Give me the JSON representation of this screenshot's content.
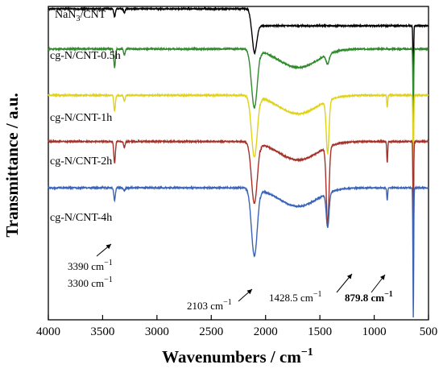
{
  "chart_data": {
    "type": "line",
    "xlabel": "Wavenumbers / cm",
    "xlabel_sup": "−1",
    "ylabel": "Transmittance / a.u.",
    "xlim": [
      4000,
      500
    ],
    "x_reversed": true,
    "xticks": [
      4000,
      3500,
      3000,
      2500,
      2000,
      1500,
      1000,
      500
    ],
    "xtick_labels": [
      "4000",
      "3500",
      "3000",
      "2500",
      "2000",
      "1500",
      "1000",
      "500"
    ],
    "yticks_shown": false,
    "grid": false,
    "series": [
      {
        "name": "NaN3/CNT",
        "label_main": "NaN",
        "label_sub": "3",
        "label_tail": "/CNT",
        "color": "#000000",
        "baseline": 1.0,
        "peaks": [
          {
            "x": 3390,
            "depth": 0.025,
            "width": 10
          },
          {
            "x": 3300,
            "depth": 0.012,
            "width": 10
          },
          {
            "x": 2103,
            "depth": 0.09,
            "width": 30
          },
          {
            "x": 640,
            "depth": 0.19,
            "width": 5
          }
        ],
        "drifts": [
          {
            "from": 2200,
            "to": 2080,
            "delta": -0.06
          },
          {
            "from": 700,
            "to": 500,
            "delta": 0.0
          }
        ]
      },
      {
        "name": "cg-N/CNT-0.5h",
        "color": "#2e8a2a",
        "baseline": 0.87,
        "peaks": [
          {
            "x": 3390,
            "depth": 0.06,
            "width": 10
          },
          {
            "x": 3300,
            "depth": 0.02,
            "width": 10
          },
          {
            "x": 2103,
            "depth": 0.19,
            "width": 38
          },
          {
            "x": 1428.5,
            "depth": 0.03,
            "width": 20
          },
          {
            "x": 640,
            "depth": 0.24,
            "width": 5
          }
        ]
      },
      {
        "name": "cg-N/CNT-1h",
        "color": "#e0d21a",
        "baseline": 0.72,
        "peaks": [
          {
            "x": 3390,
            "depth": 0.05,
            "width": 10
          },
          {
            "x": 3300,
            "depth": 0.02,
            "width": 10
          },
          {
            "x": 2103,
            "depth": 0.2,
            "width": 38
          },
          {
            "x": 1428.5,
            "depth": 0.17,
            "width": 18
          },
          {
            "x": 879.8,
            "depth": 0.04,
            "width": 6
          },
          {
            "x": 640,
            "depth": 0.27,
            "width": 5
          }
        ]
      },
      {
        "name": "cg-N/CNT-2h",
        "color": "#a3332a",
        "baseline": 0.57,
        "peaks": [
          {
            "x": 3390,
            "depth": 0.07,
            "width": 10
          },
          {
            "x": 3300,
            "depth": 0.02,
            "width": 10
          },
          {
            "x": 2103,
            "depth": 0.2,
            "width": 38
          },
          {
            "x": 1428.5,
            "depth": 0.25,
            "width": 18
          },
          {
            "x": 879.8,
            "depth": 0.07,
            "width": 6
          },
          {
            "x": 640,
            "depth": 0.3,
            "width": 5
          }
        ]
      },
      {
        "name": "cg-N/CNT-4h",
        "color": "#3a63b8",
        "baseline": 0.42,
        "peaks": [
          {
            "x": 3390,
            "depth": 0.04,
            "width": 10
          },
          {
            "x": 3300,
            "depth": 0.01,
            "width": 10
          },
          {
            "x": 2103,
            "depth": 0.22,
            "width": 38
          },
          {
            "x": 1428.5,
            "depth": 0.11,
            "width": 18
          },
          {
            "x": 879.8,
            "depth": 0.04,
            "width": 6
          },
          {
            "x": 640,
            "depth": 0.42,
            "width": 5
          }
        ]
      }
    ],
    "annotations": [
      {
        "text": "3390 cm",
        "sup": "−1",
        "x": 3390,
        "bold": false
      },
      {
        "text": "3300 cm",
        "sup": "−1",
        "x": 3300,
        "bold": false
      },
      {
        "text": "2103 cm",
        "sup": "−1",
        "x": 2103,
        "bold": false
      },
      {
        "text": "1428.5 cm",
        "sup": "−1",
        "x": 1428.5,
        "bold": false
      },
      {
        "text": "879.8 cm",
        "sup": "−1",
        "x": 879.8,
        "bold": true
      }
    ]
  }
}
